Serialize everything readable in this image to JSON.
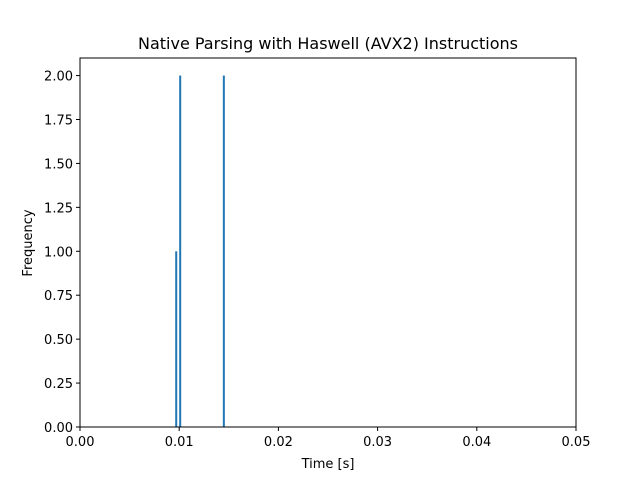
{
  "chart_data": {
    "type": "bar",
    "title": "Native Parsing with Haswell (AVX2) Instructions",
    "xlabel": "Time [s]",
    "ylabel": "Frequency",
    "xlim": [
      0,
      0.05
    ],
    "ylim": [
      0,
      2.0
    ],
    "x_ticks": [
      "0.00",
      "0.01",
      "0.02",
      "0.03",
      "0.04",
      "0.05"
    ],
    "y_ticks": [
      "0.00",
      "0.25",
      "0.50",
      "0.75",
      "1.00",
      "1.25",
      "1.50",
      "1.75",
      "2.00"
    ],
    "bins": [
      {
        "x": 0.0097,
        "value": 1
      },
      {
        "x": 0.0101,
        "value": 2
      },
      {
        "x": 0.0145,
        "value": 2
      }
    ],
    "bar_color": "#1f77b4",
    "grid": false,
    "legend": "none"
  }
}
